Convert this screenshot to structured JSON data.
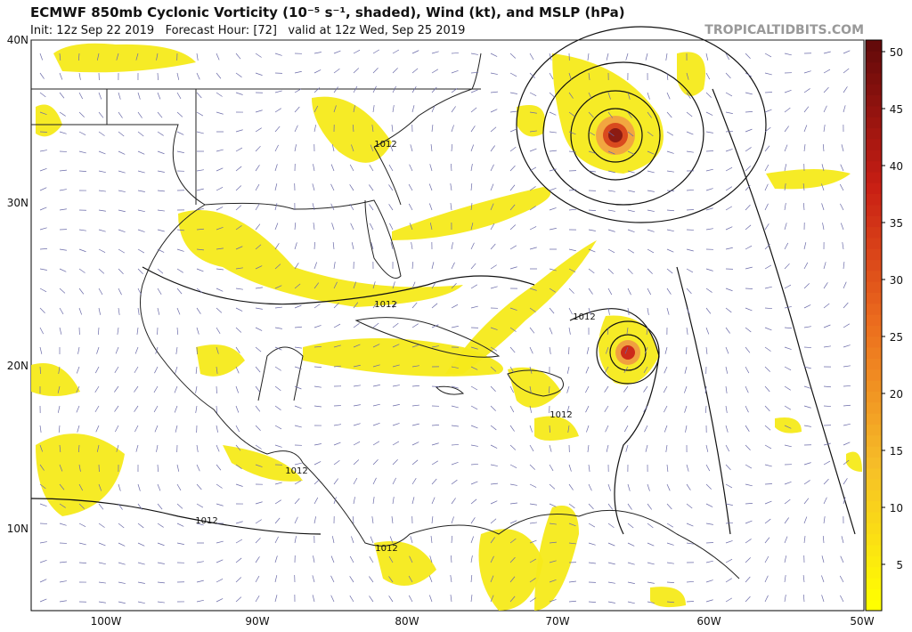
{
  "header": {
    "title": "ECMWF 850mb Cyclonic Vorticity (10⁻⁵ s⁻¹, shaded), Wind (kt), and MSLP (hPa)",
    "subtitle": "Init: 12z Sep 22 2019   Forecast Hour: [72]   valid at 12z Wed, Sep 25 2019",
    "credit": "TROPICALTIDBITS.COM"
  },
  "map": {
    "lat_labels": [
      "40N",
      "30N",
      "20N",
      "10N"
    ],
    "lon_labels": [
      "100W",
      "90W",
      "80W",
      "70W",
      "60W",
      "50W"
    ],
    "isobar_labels": [
      "1012",
      "1012",
      "1012",
      "1012",
      "1012",
      "1012",
      "1012"
    ]
  },
  "colorbar": {
    "ticks": [
      5,
      10,
      15,
      20,
      25,
      30,
      35,
      40,
      45,
      50
    ]
  }
}
